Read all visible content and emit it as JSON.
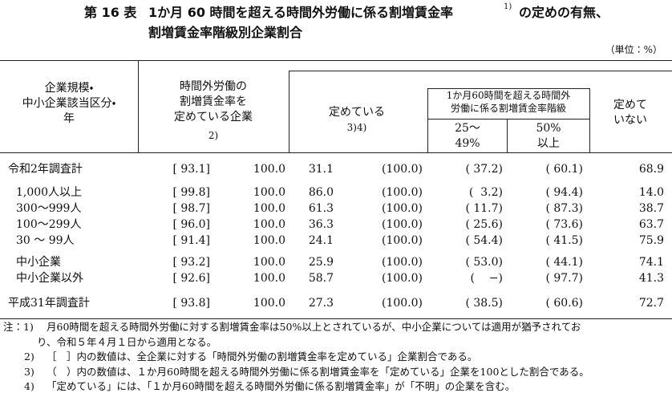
{
  "title": {
    "number": "第 16 表",
    "line1": "1か月 60 時間を超える時間外労働に係る割増賃金率",
    "sup": "1)",
    "line1_end": "の定めの有無、",
    "line2": "割増賃金率階級別企業割合"
  },
  "unit": "（単位：%）",
  "header": {
    "category": [
      "企業規模・",
      "中小企業該当区分・",
      "年"
    ],
    "has_rate": [
      "時間外労働の",
      "割増賃金率を",
      "定めている企業"
    ],
    "has_rate_note": "2)",
    "defined": "定めている",
    "defined_note": "3)4)",
    "rate_class": [
      "1か月60時間を超える時間外",
      "労働に係る割増賃金率階級"
    ],
    "rate_25_49": [
      "25〜",
      "49%"
    ],
    "rate_50_up": [
      "50%",
      "以上"
    ],
    "not_defined": [
      "定めて",
      "いない"
    ]
  },
  "table": {
    "rows": [
      [
        "令和2年調査計",
        "[ 93.1]",
        "100.0",
        "31.1",
        "(100.0)",
        "( 37.2)",
        "( 60.1)",
        "68.9"
      ],
      [
        "1,000人以上",
        "[ 99.8]",
        "100.0",
        "86.0",
        "(100.0)",
        "(  3.2)",
        "( 94.4)",
        "14.0"
      ],
      [
        "300〜999人",
        "[ 98.7]",
        "100.0",
        "61.3",
        "(100.0)",
        "( 11.7)",
        "( 87.3)",
        "38.7"
      ],
      [
        "100〜299人",
        "[ 96.0]",
        "100.0",
        "36.3",
        "(100.0)",
        "( 25.6)",
        "( 73.6)",
        "63.7"
      ],
      [
        "30 〜 99人",
        "[ 91.4]",
        "100.0",
        "24.1",
        "(100.0)",
        "( 54.4)",
        "( 41.5)",
        "75.9"
      ],
      [
        "中小企業",
        "[ 93.2]",
        "100.0",
        "25.9",
        "(100.0)",
        "( 53.0)",
        "( 44.1)",
        "74.1"
      ],
      [
        "中小企業以外",
        "[ 92.6]",
        "100.0",
        "58.7",
        "(100.0)",
        "(    −)",
        "( 97.7)",
        "41.3"
      ],
      [
        "平成31年調査計",
        "[ 93.8]",
        "100.0",
        "27.3",
        "(100.0)",
        "( 38.5)",
        "( 60.6)",
        "72.7"
      ]
    ]
  },
  "notes": [
    {
      "label": "注：1)",
      "lines": [
        "月60時間を超える時間外労働に対する割増賃金率は50%以上とされているが、中小企業については適用が猶予されてお",
        "り、令和５年４月１日から適用となる。"
      ]
    },
    {
      "label": "2)",
      "lines": [
        "［　］内の数値は、全企業に対する「時間外労働の割増賃金率を定めている」企業割合である。"
      ]
    },
    {
      "label": "3)",
      "lines": [
        "（　）内の数値は、１か月60時間を超える時間外労働に係る割増賃金率を「定めている」企業を100とした割合である。"
      ]
    },
    {
      "label": "4)",
      "lines": [
        "「定めている」には、「１か月60時間を超える時間外労働に係る割増賃金率」が「不明」の企業を含む。"
      ]
    }
  ]
}
